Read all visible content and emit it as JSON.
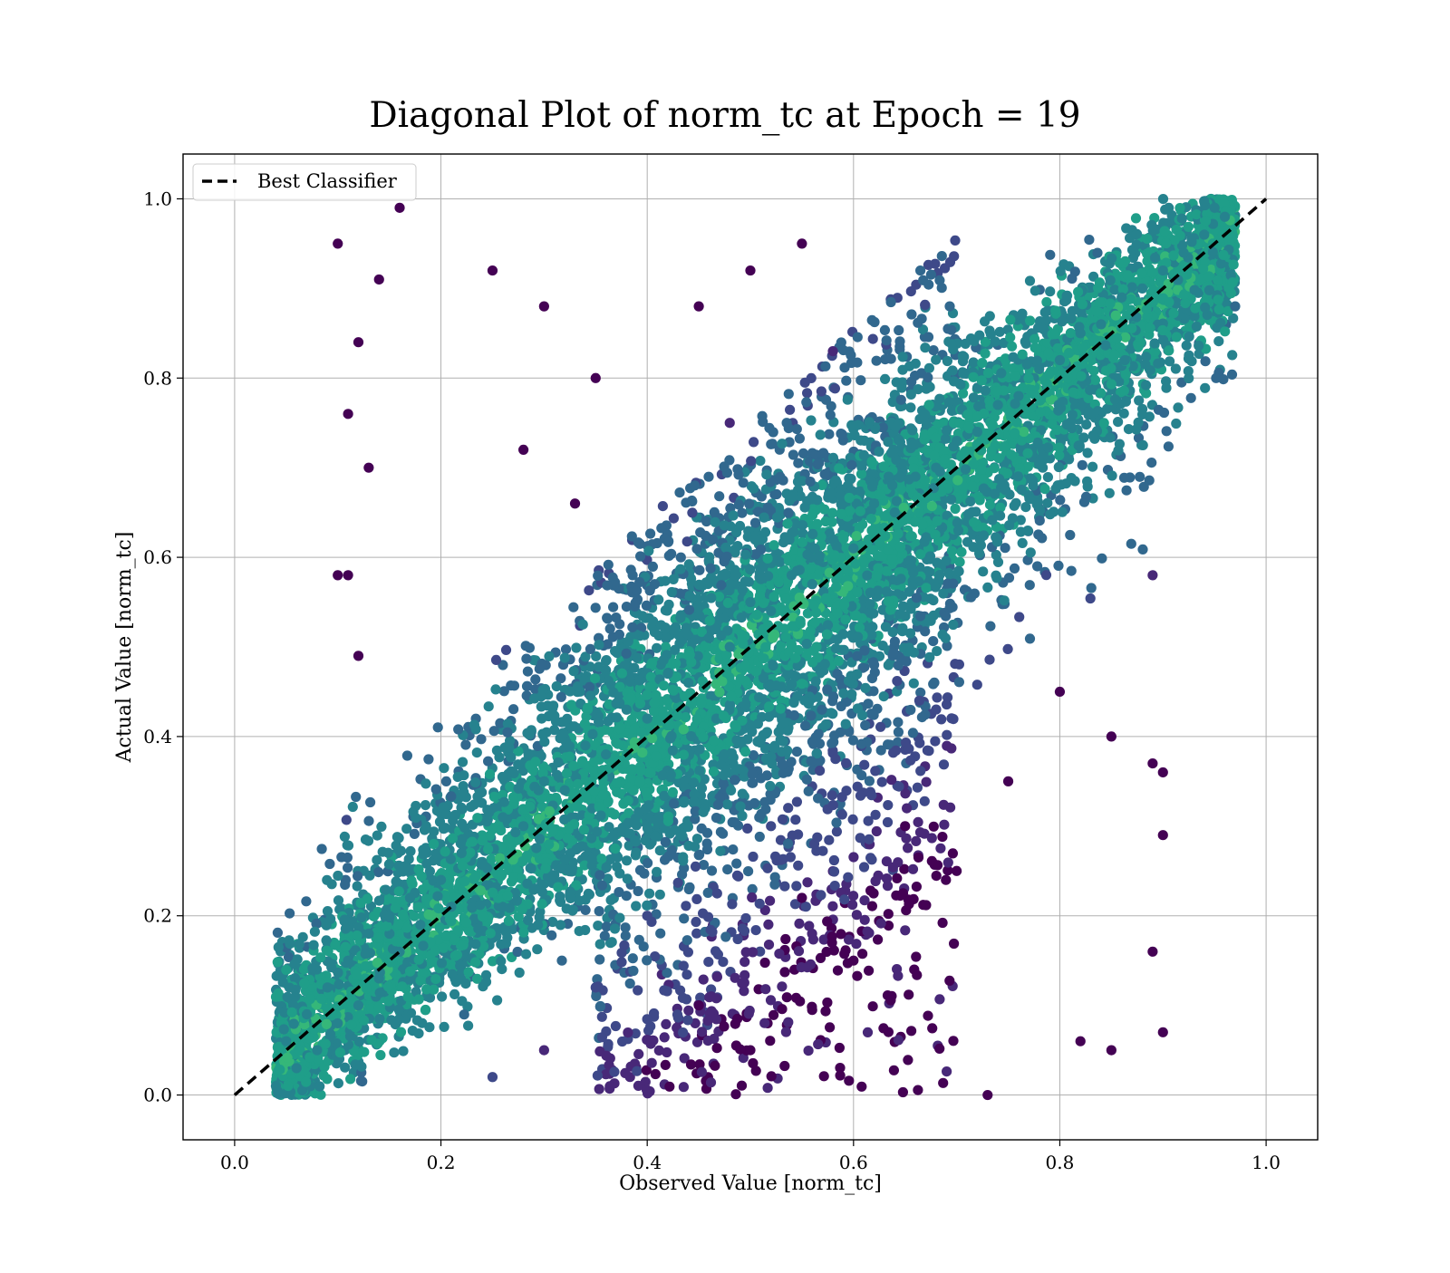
{
  "chart_data": {
    "type": "scatter",
    "title": "Diagonal Plot of norm_tc at Epoch = 19",
    "xlabel": "Observed Value [norm_tc]",
    "ylabel": "Actual Value [norm_tc]",
    "xlim": [
      -0.05,
      1.05
    ],
    "ylim": [
      -0.05,
      1.05
    ],
    "xticks": [
      0.0,
      0.2,
      0.4,
      0.6,
      0.8,
      1.0
    ],
    "yticks": [
      0.0,
      0.2,
      0.4,
      0.6,
      0.8,
      1.0
    ],
    "xtick_labels": [
      "0.0",
      "0.2",
      "0.4",
      "0.6",
      "0.8",
      "1.0"
    ],
    "ytick_labels": [
      "0.0",
      "0.2",
      "0.4",
      "0.6",
      "0.8",
      "1.0"
    ],
    "grid": true,
    "colormap": "viridis",
    "legend": {
      "placement": "top-left",
      "entries": [
        "Best Classifier"
      ]
    },
    "reference_line": {
      "name": "Best Classifier",
      "x": [
        0.0,
        1.0
      ],
      "y": [
        0.0,
        1.0
      ],
      "style": "dashed",
      "color": "#000000"
    },
    "series": [
      {
        "points": [
          [
            0.04,
            0.01
          ],
          [
            0.05,
            0.06
          ],
          [
            0.06,
            0.03
          ],
          [
            0.07,
            0.09
          ],
          [
            0.08,
            0.05
          ],
          [
            0.09,
            0.12
          ],
          [
            0.1,
            0.08
          ],
          [
            0.11,
            0.15
          ],
          [
            0.12,
            0.1
          ],
          [
            0.13,
            0.18
          ],
          [
            0.14,
            0.13
          ],
          [
            0.15,
            0.2
          ],
          [
            0.16,
            0.16
          ],
          [
            0.17,
            0.22
          ],
          [
            0.18,
            0.19
          ],
          [
            0.2,
            0.24
          ],
          [
            0.21,
            0.21
          ],
          [
            0.22,
            0.27
          ],
          [
            0.24,
            0.26
          ],
          [
            0.26,
            0.31
          ],
          [
            0.28,
            0.3
          ],
          [
            0.3,
            0.35
          ],
          [
            0.32,
            0.34
          ],
          [
            0.34,
            0.39
          ],
          [
            0.36,
            0.38
          ],
          [
            0.38,
            0.43
          ],
          [
            0.4,
            0.42
          ],
          [
            0.42,
            0.47
          ],
          [
            0.44,
            0.46
          ],
          [
            0.46,
            0.51
          ],
          [
            0.48,
            0.5
          ],
          [
            0.5,
            0.55
          ],
          [
            0.52,
            0.54
          ],
          [
            0.54,
            0.58
          ],
          [
            0.56,
            0.57
          ],
          [
            0.58,
            0.62
          ],
          [
            0.6,
            0.61
          ],
          [
            0.62,
            0.66
          ],
          [
            0.64,
            0.65
          ],
          [
            0.66,
            0.69
          ],
          [
            0.68,
            0.7
          ],
          [
            0.7,
            0.73
          ],
          [
            0.72,
            0.74
          ],
          [
            0.74,
            0.77
          ],
          [
            0.76,
            0.78
          ],
          [
            0.78,
            0.81
          ],
          [
            0.8,
            0.82
          ],
          [
            0.82,
            0.85
          ],
          [
            0.84,
            0.86
          ],
          [
            0.86,
            0.89
          ],
          [
            0.88,
            0.9
          ],
          [
            0.9,
            0.92
          ],
          [
            0.92,
            0.94
          ],
          [
            0.94,
            0.96
          ],
          [
            0.96,
            0.98
          ],
          [
            0.1,
            0.95
          ],
          [
            0.16,
            0.99
          ],
          [
            0.14,
            0.91
          ],
          [
            0.12,
            0.84
          ],
          [
            0.11,
            0.76
          ],
          [
            0.13,
            0.7
          ],
          [
            0.1,
            0.58
          ],
          [
            0.11,
            0.58
          ],
          [
            0.12,
            0.49
          ],
          [
            0.9,
            0.36
          ],
          [
            0.89,
            0.37
          ],
          [
            0.9,
            0.29
          ],
          [
            0.89,
            0.16
          ],
          [
            0.9,
            0.07
          ],
          [
            0.89,
            0.58
          ],
          [
            0.97,
            0.88
          ],
          [
            0.95,
            0.99
          ],
          [
            0.85,
            0.05
          ],
          [
            0.82,
            0.06
          ],
          [
            0.73,
            0.0
          ],
          [
            0.25,
            0.92
          ],
          [
            0.3,
            0.88
          ],
          [
            0.35,
            0.8
          ],
          [
            0.28,
            0.72
          ],
          [
            0.33,
            0.66
          ],
          [
            0.45,
            0.88
          ],
          [
            0.5,
            0.92
          ],
          [
            0.55,
            0.95
          ],
          [
            0.48,
            0.75
          ],
          [
            0.58,
            0.83
          ],
          [
            0.52,
            0.3
          ],
          [
            0.55,
            0.22
          ],
          [
            0.6,
            0.15
          ],
          [
            0.45,
            0.1
          ],
          [
            0.5,
            0.05
          ],
          [
            0.65,
            0.3
          ],
          [
            0.7,
            0.25
          ],
          [
            0.75,
            0.35
          ],
          [
            0.8,
            0.45
          ],
          [
            0.85,
            0.4
          ],
          [
            0.3,
            0.05
          ],
          [
            0.35,
            0.12
          ],
          [
            0.25,
            0.02
          ],
          [
            0.4,
            0.2
          ],
          [
            0.62,
            0.48
          ]
        ]
      }
    ]
  }
}
